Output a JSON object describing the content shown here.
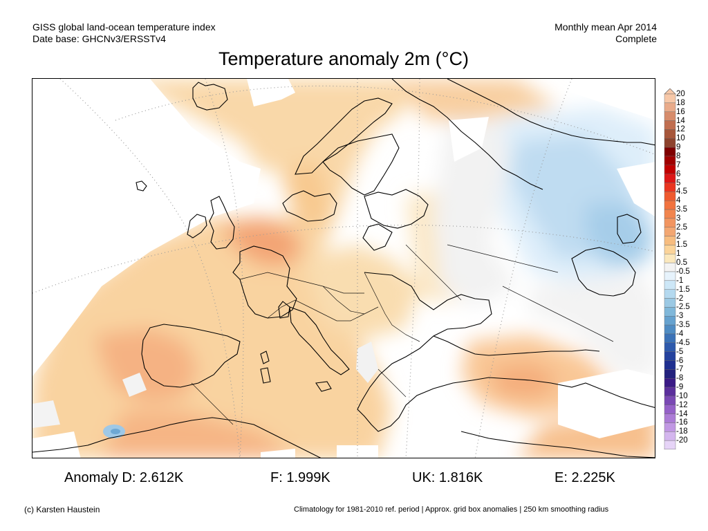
{
  "header": {
    "left_line1": "GISS global land-ocean temperature index",
    "left_line2": "Date base: GHCNv3/ERSSTv4",
    "right_line1": "Monthly mean Apr 2014",
    "right_line2": "Complete"
  },
  "title": "Temperature anomaly 2m (°C)",
  "colorbar": {
    "labels": [
      "20",
      "18",
      "16",
      "14",
      "12",
      "10",
      "9",
      "8",
      "7",
      "6",
      "5",
      "4.5",
      "4",
      "3.5",
      "3",
      "2.5",
      "2",
      "1.5",
      "1",
      "0.5",
      "-0.5",
      "-1",
      "-1.5",
      "-2",
      "-2.5",
      "-3",
      "-3.5",
      "-4",
      "-4.5",
      "-5",
      "-6",
      "-7",
      "-8",
      "-9",
      "-10",
      "-12",
      "-14",
      "-16",
      "-18",
      "-20"
    ],
    "colors": [
      "#f7c8a8",
      "#e9ab8a",
      "#d78c6b",
      "#c06e50",
      "#a7573b",
      "#8e432d",
      "#7f0000",
      "#a00000",
      "#c10000",
      "#dd1616",
      "#ea3520",
      "#ef5a2e",
      "#f1733f",
      "#f1854e",
      "#f29560",
      "#f3a772",
      "#f7bd80",
      "#fbd49a",
      "#fbe8bd",
      "#f3f3f3",
      "#e7f3fc",
      "#cde7f7",
      "#b4d9ef",
      "#9bc9e4",
      "#80b8da",
      "#66a2cf",
      "#4f8cc3",
      "#3b72b7",
      "#2e5aac",
      "#24429e",
      "#1f2f8f",
      "#23227e",
      "#3a1a86",
      "#5b2f9c",
      "#7a49b4",
      "#9561c8",
      "#ac7cd6",
      "#c198e3",
      "#d4b6ee",
      "#e6d4f7"
    ]
  },
  "stats": {
    "d": "Anomaly D: 2.612K",
    "f": "F: 1.999K",
    "uk": "UK: 1.816K",
    "e": "E: 2.225K"
  },
  "footer": {
    "left": "(c) Karsten Haustein",
    "right": "Climatology for 1981-2010 ref. period | Approx. grid box anomalies | 250 km smoothing radius"
  }
}
